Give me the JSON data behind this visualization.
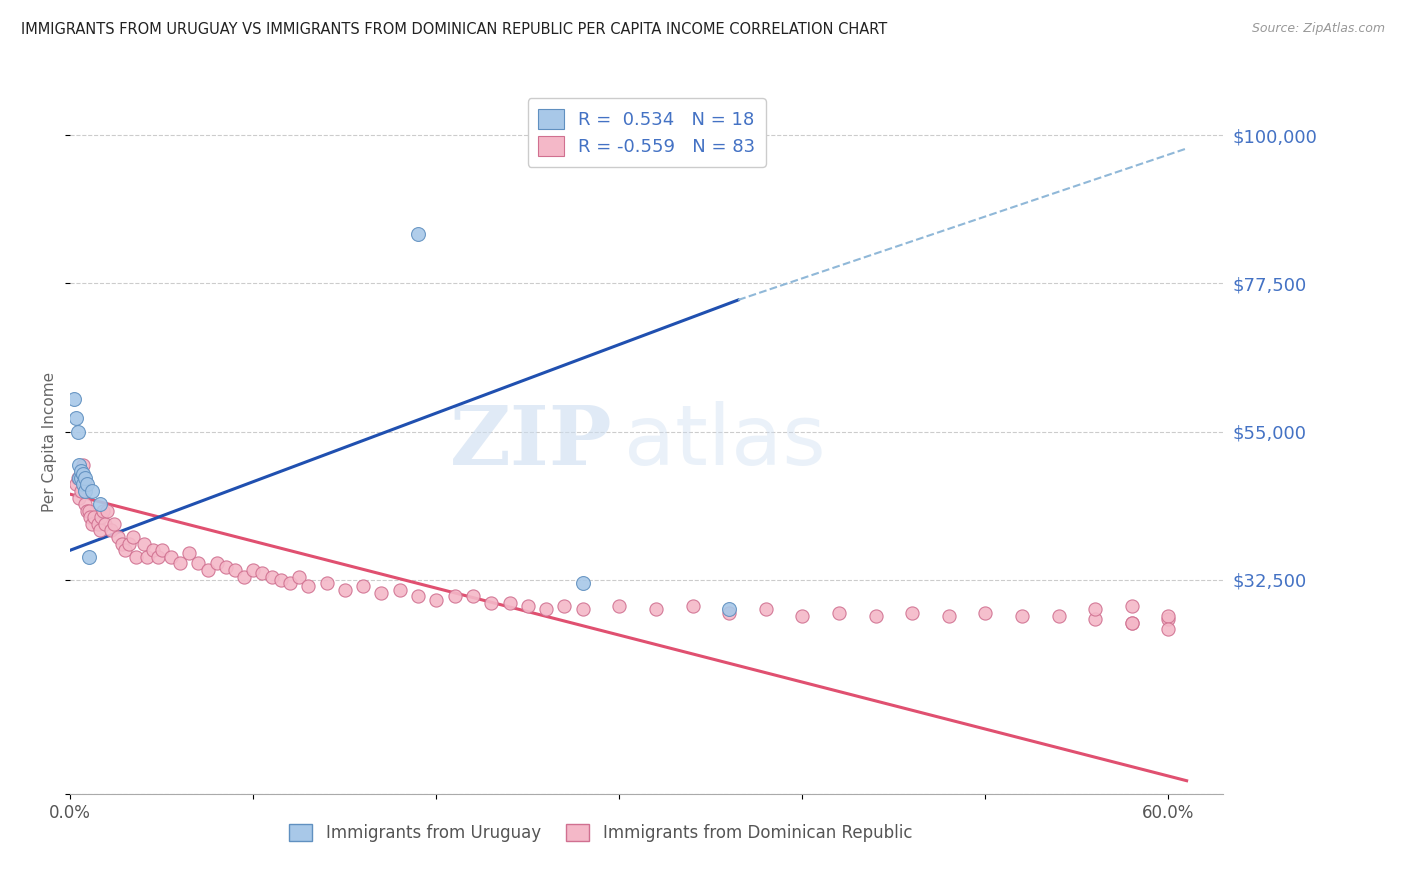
{
  "title": "IMMIGRANTS FROM URUGUAY VS IMMIGRANTS FROM DOMINICAN REPUBLIC PER CAPITA INCOME CORRELATION CHART",
  "source": "Source: ZipAtlas.com",
  "ylabel": "Per Capita Income",
  "y_ticks": [
    0,
    32500,
    55000,
    77500,
    100000
  ],
  "y_tick_labels": [
    "",
    "$32,500",
    "$55,000",
    "$77,500",
    "$100,000"
  ],
  "y_right_color": "#4472c4",
  "title_color": "#222222",
  "source_color": "#999999",
  "legend_color": "#4472c4",
  "watermark": "ZIPatlas",
  "watermark_color": "#d0e4f5",
  "series1_color": "#a8c8e8",
  "series2_color": "#f4b8c8",
  "series1_edge": "#6090c0",
  "series2_edge": "#d07090",
  "trend1_color": "#2050b0",
  "trend2_color": "#e05070",
  "grid_color": "#cccccc",
  "background_color": "#ffffff",
  "uruguay_x": [
    0.002,
    0.003,
    0.004,
    0.005,
    0.005,
    0.006,
    0.006,
    0.007,
    0.007,
    0.008,
    0.008,
    0.009,
    0.01,
    0.012,
    0.016,
    0.19,
    0.28,
    0.36
  ],
  "uruguay_y": [
    60000,
    57000,
    55000,
    48000,
    50000,
    48000,
    49000,
    47000,
    48500,
    46000,
    48000,
    47000,
    36000,
    46000,
    44000,
    85000,
    32000,
    28000
  ],
  "dominican_x": [
    0.003,
    0.004,
    0.005,
    0.006,
    0.007,
    0.008,
    0.008,
    0.009,
    0.01,
    0.011,
    0.012,
    0.013,
    0.015,
    0.016,
    0.017,
    0.018,
    0.019,
    0.02,
    0.022,
    0.024,
    0.026,
    0.028,
    0.03,
    0.032,
    0.034,
    0.036,
    0.04,
    0.042,
    0.045,
    0.048,
    0.05,
    0.055,
    0.06,
    0.065,
    0.07,
    0.075,
    0.08,
    0.085,
    0.09,
    0.095,
    0.1,
    0.105,
    0.11,
    0.115,
    0.12,
    0.125,
    0.13,
    0.14,
    0.15,
    0.16,
    0.17,
    0.18,
    0.19,
    0.2,
    0.21,
    0.22,
    0.23,
    0.24,
    0.25,
    0.26,
    0.27,
    0.28,
    0.3,
    0.32,
    0.34,
    0.36,
    0.38,
    0.4,
    0.42,
    0.44,
    0.46,
    0.48,
    0.5,
    0.52,
    0.54,
    0.56,
    0.58,
    0.6,
    0.56,
    0.58,
    0.6,
    0.58,
    0.6
  ],
  "dominican_y": [
    47000,
    48000,
    45000,
    46000,
    50000,
    44000,
    47000,
    43000,
    43000,
    42000,
    41000,
    42000,
    41000,
    40000,
    42000,
    43000,
    41000,
    43000,
    40000,
    41000,
    39000,
    38000,
    37000,
    38000,
    39000,
    36000,
    38000,
    36000,
    37000,
    36000,
    37000,
    36000,
    35000,
    36500,
    35000,
    34000,
    35000,
    34500,
    34000,
    33000,
    34000,
    33500,
    33000,
    32500,
    32000,
    33000,
    31500,
    32000,
    31000,
    31500,
    30500,
    31000,
    30000,
    29500,
    30000,
    30000,
    29000,
    29000,
    28500,
    28000,
    28500,
    28000,
    28500,
    28000,
    28500,
    27500,
    28000,
    27000,
    27500,
    27000,
    27500,
    27000,
    27500,
    27000,
    27000,
    26500,
    26000,
    26500,
    28000,
    28500,
    27000,
    26000,
    25000
  ],
  "trend1_x0": 0.0,
  "trend1_x1": 0.365,
  "trend1_y0": 37000,
  "trend1_y1": 75000,
  "trend1_dash_x0": 0.365,
  "trend1_dash_x1": 0.61,
  "trend1_dash_y0": 75000,
  "trend1_dash_y1": 98000,
  "trend2_x0": 0.0,
  "trend2_x1": 0.61,
  "trend2_y0": 45500,
  "trend2_y1": 2000,
  "xlim": [
    0.0,
    0.63
  ],
  "ylim": [
    0,
    107000
  ]
}
